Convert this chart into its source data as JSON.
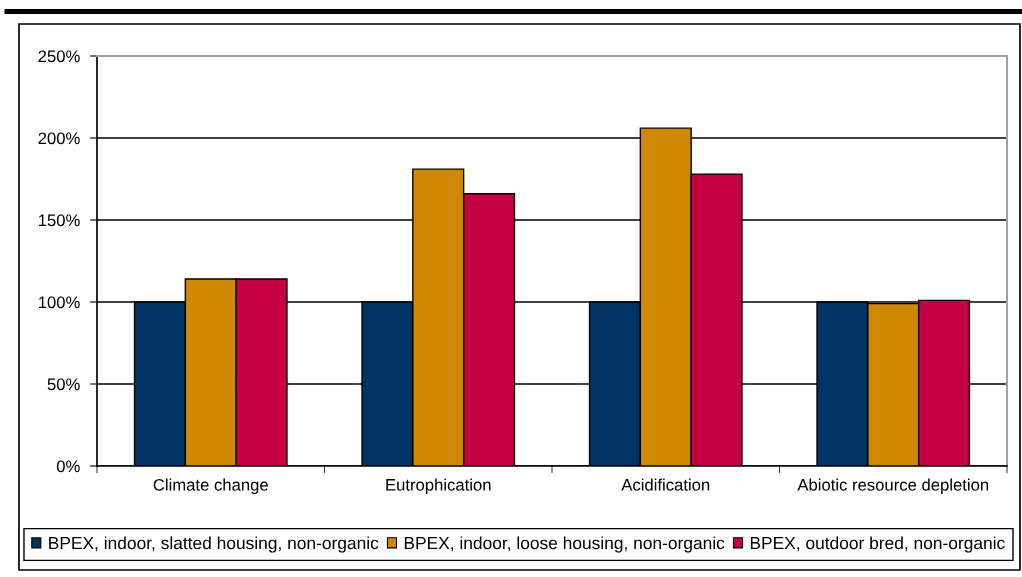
{
  "chart_data": {
    "type": "bar",
    "categories": [
      "Climate change",
      "Eutrophication",
      "Acidification",
      "Abiotic resource depletion"
    ],
    "series": [
      {
        "name": "BPEX, indoor, slatted housing, non-organic",
        "color": "#003366",
        "values": [
          100,
          100,
          100,
          100
        ]
      },
      {
        "name": "BPEX, indoor, loose housing, non-organic",
        "color": "#d08800",
        "values": [
          114,
          181,
          206,
          99
        ]
      },
      {
        "name": "BPEX, outdoor bred, non-organic",
        "color": "#c40042",
        "values": [
          114,
          166,
          178,
          101
        ]
      }
    ],
    "ylim": [
      0,
      250
    ],
    "yticks": [
      {
        "value": 0,
        "label": "0%"
      },
      {
        "value": 50,
        "label": "50%"
      },
      {
        "value": 100,
        "label": "100%"
      },
      {
        "value": 150,
        "label": "150%"
      },
      {
        "value": 200,
        "label": "200%"
      },
      {
        "value": 250,
        "label": "250%"
      }
    ],
    "grid": "y",
    "legend": "bottom"
  }
}
